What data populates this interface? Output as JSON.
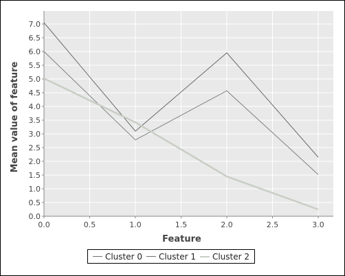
{
  "chart_data": {
    "type": "line",
    "title": "",
    "xlabel": "Feature",
    "ylabel": "Mean value of feature",
    "xlim": [
      0.0,
      3.0
    ],
    "ylim": [
      0.0,
      7.0
    ],
    "xticks": [
      "0.0",
      "0.5",
      "1.0",
      "1.5",
      "2.0",
      "2.5",
      "3.0"
    ],
    "yticks": [
      "0.0",
      "0.5",
      "1.0",
      "1.5",
      "2.0",
      "2.5",
      "3.0",
      "3.5",
      "4.0",
      "4.5",
      "5.0",
      "5.5",
      "6.0",
      "6.5",
      "7.0"
    ],
    "x": [
      0,
      1,
      2,
      3
    ],
    "series": [
      {
        "name": "Cluster 0",
        "values": [
          7.05,
          3.1,
          5.95,
          2.15
        ],
        "color": "#6b6b6b"
      },
      {
        "name": "Cluster 1",
        "values": [
          6.0,
          2.78,
          4.57,
          1.52
        ],
        "color": "#808080"
      },
      {
        "name": "Cluster 2",
        "values": [
          5.02,
          3.42,
          1.45,
          0.25
        ],
        "color": "#c8cec4"
      }
    ],
    "grid": true,
    "legend": "bottom-center",
    "background_color": "#e9e9e9",
    "grid_color": "#ffffff"
  }
}
